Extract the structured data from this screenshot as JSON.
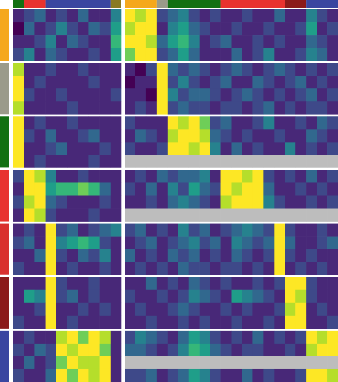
{
  "chart_data": {
    "type": "heatmap",
    "colormap": [
      "#440154",
      "#482878",
      "#3e4989",
      "#31688e",
      "#26828e",
      "#1f9e89",
      "#35b779",
      "#6ece58",
      "#b5de2b",
      "#fde725"
    ],
    "zlim": [
      0,
      9
    ],
    "missing_color": "#bdbdbd",
    "panels": [
      {
        "column_groups": [
          {
            "color": "#127012",
            "span": 1
          },
          {
            "color": "#e8322f",
            "span": 2
          },
          {
            "color": "#3a46a0",
            "span": 6
          },
          {
            "color": "#8a7a22",
            "span": 1
          }
        ]
      },
      {
        "column_groups": [
          {
            "color": "#f5a81c",
            "span": 3
          },
          {
            "color": "#9a9a8a",
            "span": 1
          },
          {
            "color": "#127012",
            "span": 5
          },
          {
            "color": "#e8322f",
            "span": 6
          },
          {
            "color": "#8b1a1a",
            "span": 2
          },
          {
            "color": "#3a46a0",
            "span": 3
          }
        ]
      }
    ],
    "row_groups": [
      {
        "color": "#f5a81c",
        "rows": [
          [
            1,
            2,
            3,
            1,
            2,
            1,
            3,
            1,
            1,
            4,
            9,
            8,
            9,
            2,
            3,
            4,
            2,
            1,
            2,
            1,
            1,
            2,
            1,
            1,
            3,
            1,
            1,
            4,
            2,
            1
          ],
          [
            0,
            3,
            1,
            2,
            4,
            2,
            1,
            3,
            2,
            5,
            8,
            9,
            9,
            1,
            4,
            5,
            3,
            2,
            1,
            1,
            2,
            1,
            1,
            2,
            1,
            1,
            2,
            5,
            1,
            2
          ],
          [
            1,
            1,
            2,
            4,
            1,
            3,
            2,
            1,
            1,
            6,
            9,
            9,
            8,
            3,
            5,
            6,
            4,
            1,
            2,
            3,
            1,
            1,
            2,
            1,
            2,
            1,
            1,
            3,
            2,
            1
          ],
          [
            2,
            4,
            1,
            3,
            2,
            1,
            1,
            2,
            1,
            5,
            7,
            9,
            9,
            2,
            3,
            5,
            3,
            1,
            1,
            1,
            3,
            1,
            2,
            4,
            1,
            1,
            2,
            4,
            3,
            1
          ]
        ]
      },
      {
        "color": "#9a9a8a",
        "rows": [
          [
            8,
            1,
            1,
            2,
            1,
            1,
            2,
            1,
            1,
            1,
            1,
            0,
            2,
            9,
            3,
            2,
            3,
            2,
            1,
            2,
            3,
            2,
            1,
            2,
            3,
            2,
            1,
            2,
            1,
            2
          ],
          [
            9,
            1,
            2,
            1,
            1,
            1,
            1,
            2,
            1,
            1,
            0,
            1,
            1,
            9,
            2,
            4,
            2,
            1,
            2,
            3,
            1,
            1,
            3,
            2,
            1,
            2,
            3,
            1,
            2,
            1
          ],
          [
            9,
            2,
            1,
            1,
            2,
            1,
            1,
            1,
            1,
            2,
            1,
            1,
            0,
            9,
            4,
            2,
            3,
            3,
            2,
            1,
            2,
            3,
            2,
            1,
            2,
            1,
            2,
            3,
            1,
            2
          ],
          [
            8,
            1,
            1,
            1,
            1,
            2,
            1,
            1,
            1,
            1,
            1,
            2,
            1,
            9,
            2,
            3,
            2,
            2,
            1,
            2,
            2,
            1,
            2,
            3,
            1,
            2,
            1,
            2,
            2,
            1
          ]
        ]
      },
      {
        "color": "#127012",
        "rows": [
          [
            9,
            1,
            2,
            1,
            1,
            2,
            1,
            1,
            1,
            1,
            2,
            1,
            1,
            1,
            9,
            8,
            9,
            7,
            2,
            3,
            1,
            1,
            2,
            4,
            1,
            1,
            2,
            1,
            3,
            2
          ],
          [
            9,
            2,
            1,
            3,
            1,
            1,
            2,
            3,
            1,
            1,
            1,
            3,
            2,
            1,
            8,
            9,
            9,
            8,
            3,
            2,
            1,
            2,
            1,
            1,
            2,
            1,
            1,
            3,
            2,
            1
          ],
          [
            9,
            1,
            1,
            2,
            3,
            1,
            1,
            1,
            2,
            1,
            2,
            1,
            1,
            2,
            9,
            9,
            8,
            9,
            4,
            1,
            3,
            1,
            2,
            1,
            1,
            4,
            1,
            2,
            1,
            2
          ],
          [
            9,
            1,
            2,
            1,
            1,
            1,
            1,
            2,
            1,
            1,
            null,
            null,
            null,
            null,
            null,
            null,
            null,
            null,
            null,
            null,
            null,
            null,
            null,
            null,
            null,
            null,
            null,
            null,
            null,
            null
          ]
        ]
      },
      {
        "color": "#e8322f",
        "rows": [
          [
            2,
            9,
            8,
            4,
            1,
            1,
            2,
            1,
            1,
            1,
            1,
            2,
            1,
            3,
            2,
            3,
            3,
            4,
            1,
            9,
            9,
            8,
            9,
            2,
            1,
            2,
            1,
            3,
            1,
            2
          ],
          [
            1,
            9,
            9,
            5,
            6,
            6,
            7,
            6,
            3,
            1,
            2,
            1,
            3,
            1,
            4,
            2,
            5,
            3,
            2,
            9,
            8,
            9,
            9,
            3,
            1,
            1,
            2,
            1,
            2,
            1
          ],
          [
            2,
            8,
            9,
            3,
            2,
            1,
            1,
            1,
            2,
            1,
            1,
            1,
            2,
            1,
            3,
            4,
            3,
            2,
            1,
            8,
            9,
            9,
            9,
            4,
            2,
            1,
            1,
            2,
            1,
            2
          ],
          [
            1,
            9,
            8,
            2,
            1,
            1,
            1,
            2,
            1,
            1,
            null,
            null,
            null,
            null,
            null,
            null,
            null,
            null,
            null,
            null,
            null,
            null,
            null,
            null,
            null,
            null,
            null,
            null,
            null,
            null
          ]
        ]
      },
      {
        "color": "#d9302e",
        "rows": [
          [
            1,
            2,
            1,
            9,
            2,
            3,
            1,
            2,
            3,
            4,
            2,
            3,
            1,
            2,
            1,
            4,
            2,
            3,
            1,
            2,
            3,
            4,
            3,
            2,
            9,
            2,
            1,
            1,
            2,
            1
          ],
          [
            2,
            3,
            1,
            9,
            4,
            5,
            6,
            5,
            2,
            1,
            1,
            2,
            3,
            1,
            2,
            3,
            4,
            2,
            3,
            1,
            4,
            3,
            2,
            3,
            9,
            3,
            1,
            1,
            2,
            3
          ],
          [
            1,
            1,
            3,
            9,
            2,
            1,
            3,
            2,
            4,
            1,
            3,
            1,
            2,
            1,
            3,
            2,
            3,
            1,
            2,
            1,
            3,
            2,
            1,
            2,
            9,
            2,
            1,
            2,
            1,
            1
          ],
          [
            2,
            1,
            1,
            9,
            1,
            2,
            1,
            1,
            2,
            1,
            1,
            2,
            1,
            2,
            1,
            3,
            2,
            2,
            1,
            2,
            2,
            1,
            2,
            1,
            9,
            1,
            2,
            1,
            2,
            1
          ]
        ]
      },
      {
        "color": "#8b1a1a",
        "rows": [
          [
            1,
            1,
            1,
            9,
            2,
            1,
            1,
            2,
            1,
            1,
            1,
            1,
            3,
            1,
            2,
            1,
            3,
            2,
            1,
            2,
            1,
            1,
            2,
            1,
            2,
            9,
            9,
            2,
            1,
            1
          ],
          [
            1,
            5,
            4,
            9,
            2,
            3,
            1,
            2,
            1,
            1,
            2,
            1,
            1,
            2,
            1,
            2,
            4,
            3,
            2,
            1,
            5,
            4,
            3,
            2,
            1,
            9,
            8,
            2,
            1,
            1
          ],
          [
            1,
            1,
            2,
            9,
            1,
            1,
            2,
            1,
            2,
            1,
            1,
            2,
            1,
            1,
            2,
            3,
            2,
            1,
            1,
            2,
            1,
            2,
            1,
            1,
            2,
            8,
            9,
            1,
            2,
            1
          ],
          [
            2,
            1,
            1,
            9,
            1,
            2,
            1,
            1,
            1,
            1,
            1,
            1,
            2,
            1,
            1,
            2,
            1,
            2,
            1,
            1,
            2,
            1,
            1,
            2,
            1,
            9,
            9,
            1,
            1,
            2
          ]
        ]
      },
      {
        "color": "#3a46a0",
        "rows": [
          [
            1,
            2,
            1,
            1,
            8,
            9,
            7,
            9,
            8,
            1,
            2,
            4,
            3,
            2,
            1,
            3,
            5,
            4,
            2,
            1,
            2,
            1,
            3,
            1,
            2,
            1,
            2,
            9,
            8,
            9
          ],
          [
            2,
            1,
            3,
            2,
            9,
            8,
            9,
            9,
            7,
            1,
            3,
            3,
            2,
            1,
            2,
            4,
            6,
            5,
            3,
            2,
            1,
            2,
            2,
            1,
            1,
            2,
            1,
            8,
            9,
            9
          ],
          [
            1,
            3,
            1,
            2,
            7,
            9,
            8,
            8,
            9,
            1,
            null,
            null,
            null,
            null,
            null,
            null,
            null,
            null,
            null,
            null,
            null,
            null,
            null,
            null,
            null,
            null,
            null,
            null,
            null,
            null
          ],
          [
            2,
            1,
            1,
            3,
            9,
            7,
            9,
            8,
            9,
            1,
            2,
            2,
            3,
            1,
            2,
            3,
            5,
            4,
            2,
            1,
            1,
            3,
            1,
            2,
            1,
            1,
            2,
            9,
            9,
            8
          ]
        ]
      }
    ]
  }
}
